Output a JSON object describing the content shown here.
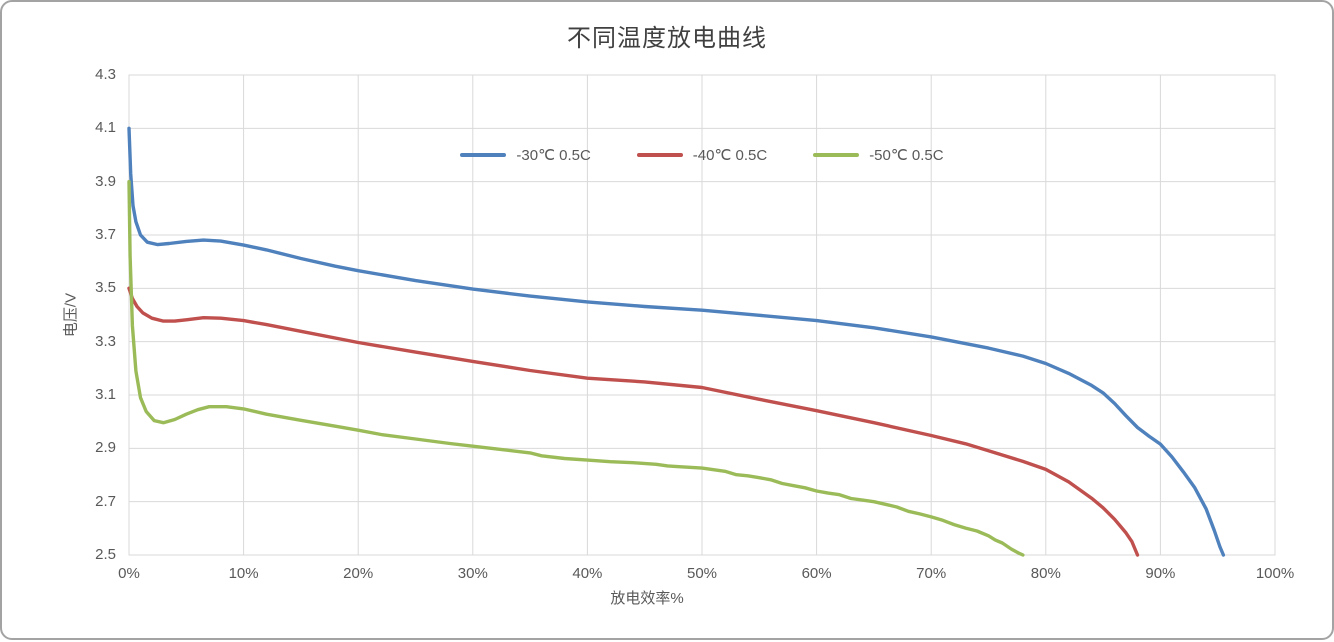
{
  "chart_data": {
    "type": "line",
    "title": "不同温度放电曲线",
    "xlabel": "放电效率%",
    "ylabel": "电压/V",
    "xlim": [
      0,
      100
    ],
    "ylim": [
      2.5,
      4.3
    ],
    "x_tick_labels": [
      "0%",
      "10%",
      "20%",
      "30%",
      "40%",
      "50%",
      "60%",
      "70%",
      "80%",
      "90%",
      "100%"
    ],
    "x_tick_values": [
      0,
      10,
      20,
      30,
      40,
      50,
      60,
      70,
      80,
      90,
      100
    ],
    "y_tick_labels": [
      "4.3",
      "4.1",
      "3.9",
      "3.7",
      "3.5",
      "3.3",
      "3.1",
      "2.9",
      "2.7",
      "2.5"
    ],
    "y_tick_values": [
      4.3,
      4.1,
      3.9,
      3.7,
      3.5,
      3.3,
      3.1,
      2.9,
      2.7,
      2.5
    ],
    "grid": true,
    "legend_position": "inside-top-center",
    "colors": {
      "grid": "#d9d9d9",
      "axis_text": "#595959",
      "title_text": "#404040",
      "card_border": "#a3a3a3"
    },
    "series": [
      {
        "name": "-30℃ 0.5C",
        "color": "#4f81bd",
        "points": [
          [
            0,
            4.1
          ],
          [
            0.15,
            3.93
          ],
          [
            0.35,
            3.81
          ],
          [
            0.6,
            3.75
          ],
          [
            1,
            3.7
          ],
          [
            1.6,
            3.673
          ],
          [
            2.5,
            3.664
          ],
          [
            3.5,
            3.668
          ],
          [
            5,
            3.676
          ],
          [
            6.5,
            3.681
          ],
          [
            8,
            3.677
          ],
          [
            10,
            3.662
          ],
          [
            12,
            3.644
          ],
          [
            15,
            3.612
          ],
          [
            18,
            3.583
          ],
          [
            20,
            3.566
          ],
          [
            25,
            3.529
          ],
          [
            30,
            3.497
          ],
          [
            35,
            3.471
          ],
          [
            40,
            3.449
          ],
          [
            45,
            3.432
          ],
          [
            50,
            3.418
          ],
          [
            55,
            3.399
          ],
          [
            60,
            3.379
          ],
          [
            65,
            3.352
          ],
          [
            70,
            3.318
          ],
          [
            75,
            3.276
          ],
          [
            78,
            3.246
          ],
          [
            80,
            3.218
          ],
          [
            82,
            3.181
          ],
          [
            84,
            3.136
          ],
          [
            85,
            3.108
          ],
          [
            86,
            3.068
          ],
          [
            87,
            3.022
          ],
          [
            88,
            2.978
          ],
          [
            89,
            2.946
          ],
          [
            90,
            2.916
          ],
          [
            91,
            2.868
          ],
          [
            92,
            2.812
          ],
          [
            93,
            2.752
          ],
          [
            94,
            2.672
          ],
          [
            94.7,
            2.592
          ],
          [
            95.2,
            2.53
          ],
          [
            95.5,
            2.5
          ]
        ]
      },
      {
        "name": "-40℃ 0.5C",
        "color": "#c0504d",
        "points": [
          [
            0,
            3.5
          ],
          [
            0.3,
            3.462
          ],
          [
            0.7,
            3.432
          ],
          [
            1.2,
            3.408
          ],
          [
            2,
            3.388
          ],
          [
            3,
            3.377
          ],
          [
            4,
            3.377
          ],
          [
            5,
            3.382
          ],
          [
            6.5,
            3.39
          ],
          [
            8,
            3.388
          ],
          [
            10,
            3.379
          ],
          [
            12,
            3.364
          ],
          [
            15,
            3.339
          ],
          [
            20,
            3.297
          ],
          [
            25,
            3.261
          ],
          [
            30,
            3.226
          ],
          [
            35,
            3.192
          ],
          [
            40,
            3.163
          ],
          [
            45,
            3.149
          ],
          [
            50,
            3.128
          ],
          [
            55,
            3.084
          ],
          [
            60,
            3.041
          ],
          [
            65,
            2.996
          ],
          [
            70,
            2.948
          ],
          [
            73,
            2.917
          ],
          [
            75,
            2.891
          ],
          [
            78,
            2.851
          ],
          [
            80,
            2.821
          ],
          [
            82,
            2.774
          ],
          [
            84,
            2.713
          ],
          [
            85,
            2.677
          ],
          [
            86,
            2.634
          ],
          [
            87,
            2.583
          ],
          [
            87.5,
            2.551
          ],
          [
            88,
            2.5
          ]
        ]
      },
      {
        "name": "-50℃ 0.5C",
        "color": "#9bbb59",
        "points": [
          [
            0,
            3.9
          ],
          [
            0.1,
            3.62
          ],
          [
            0.3,
            3.36
          ],
          [
            0.6,
            3.19
          ],
          [
            1,
            3.09
          ],
          [
            1.5,
            3.038
          ],
          [
            2.2,
            3.004
          ],
          [
            3,
            2.996
          ],
          [
            4,
            3.008
          ],
          [
            5,
            3.028
          ],
          [
            6,
            3.045
          ],
          [
            7,
            3.056
          ],
          [
            8.5,
            3.056
          ],
          [
            10,
            3.048
          ],
          [
            12,
            3.028
          ],
          [
            15,
            3.005
          ],
          [
            18,
            2.983
          ],
          [
            20,
            2.968
          ],
          [
            22,
            2.952
          ],
          [
            25,
            2.935
          ],
          [
            28,
            2.918
          ],
          [
            30,
            2.908
          ],
          [
            33,
            2.893
          ],
          [
            35,
            2.883
          ],
          [
            36,
            2.872
          ],
          [
            38,
            2.862
          ],
          [
            40,
            2.856
          ],
          [
            42,
            2.85
          ],
          [
            44,
            2.846
          ],
          [
            46,
            2.84
          ],
          [
            47,
            2.834
          ],
          [
            48,
            2.831
          ],
          [
            50,
            2.826
          ],
          [
            51,
            2.82
          ],
          [
            52,
            2.814
          ],
          [
            53,
            2.801
          ],
          [
            54,
            2.797
          ],
          [
            55,
            2.79
          ],
          [
            56,
            2.782
          ],
          [
            57,
            2.768
          ],
          [
            58,
            2.76
          ],
          [
            59,
            2.752
          ],
          [
            60,
            2.74
          ],
          [
            61,
            2.732
          ],
          [
            62,
            2.726
          ],
          [
            63,
            2.712
          ],
          [
            64,
            2.706
          ],
          [
            65,
            2.7
          ],
          [
            66,
            2.69
          ],
          [
            67,
            2.68
          ],
          [
            68,
            2.664
          ],
          [
            69,
            2.654
          ],
          [
            70,
            2.643
          ],
          [
            71,
            2.63
          ],
          [
            72,
            2.614
          ],
          [
            73,
            2.601
          ],
          [
            74,
            2.59
          ],
          [
            75,
            2.572
          ],
          [
            75.6,
            2.556
          ],
          [
            76.2,
            2.545
          ],
          [
            77,
            2.522
          ],
          [
            77.6,
            2.508
          ],
          [
            78,
            2.5
          ]
        ]
      }
    ]
  }
}
